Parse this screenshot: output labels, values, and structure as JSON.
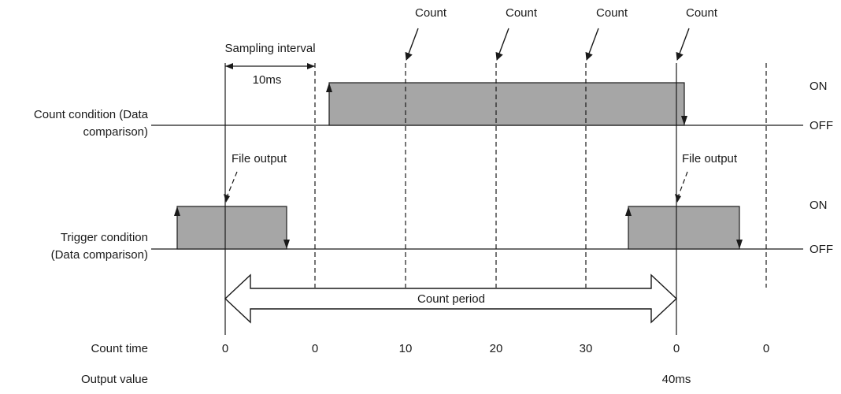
{
  "labels": {
    "count_marker": "Count",
    "sampling_interval": "Sampling interval",
    "interval_value": "10ms",
    "on_state": "ON",
    "off_state": "OFF",
    "count_condition_line1": "Count condition (Data",
    "count_condition_line2": "comparison)",
    "trigger_condition_line1": "Trigger condition",
    "trigger_condition_line2": "(Data comparison)",
    "file_output": "File output",
    "count_period": "Count period",
    "count_time_label": "Count time",
    "output_value_label": "Output value"
  },
  "count_times": [
    "0",
    "0",
    "10",
    "20",
    "30",
    "0",
    "0"
  ],
  "output_value": "40ms"
}
